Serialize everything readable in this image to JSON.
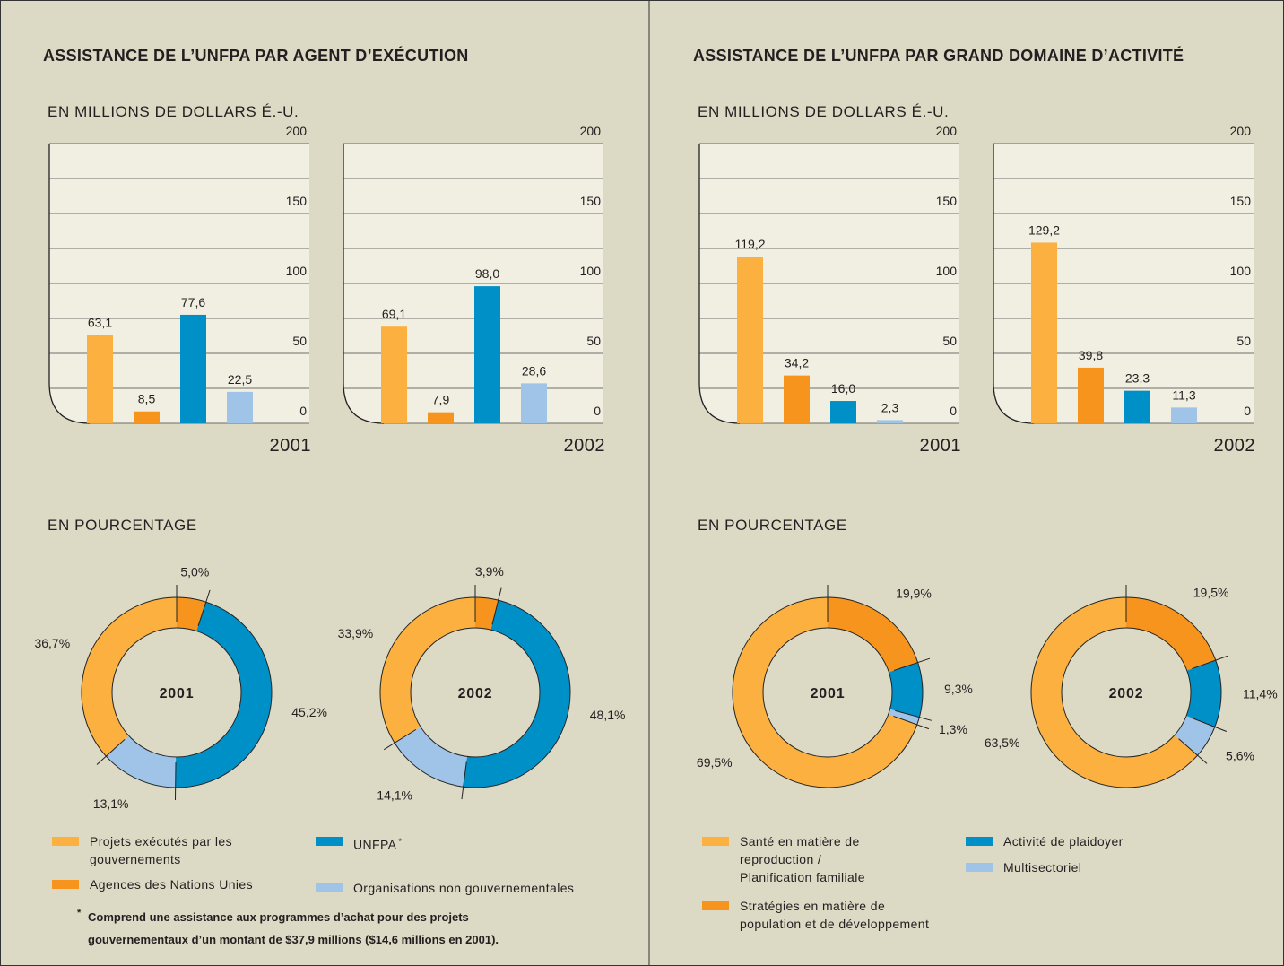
{
  "panels": [
    {
      "title": "ASSISTANCE DE L’UNFPA PAR AGENT D’EXÉCUTION",
      "subtitle_amounts": "EN MILLIONS DE DOLLARS É.-U.",
      "subtitle_percent": "EN POURCENTAGE",
      "legend": [
        {
          "name": "Projets exécutés par les gouvernements",
          "color": "#fbb040"
        },
        {
          "name": "Agences des Nations Unies",
          "color": "#f7941d"
        },
        {
          "name": "UNFPA",
          "color": "#0090c8",
          "note_mark": "*"
        },
        {
          "name": "Organisations non gouvernementales",
          "color": "#9fc4e7"
        }
      ],
      "footnote": {
        "mark": "*",
        "text": "Comprend une assistance aux programmes d’achat pour des projets gouvernementaux d’un montant de $37,9 millions ($14,6 millions en 2001)."
      }
    },
    {
      "title": "ASSISTANCE DE L’UNFPA PAR GRAND DOMAINE D’ACTIVITÉ",
      "subtitle_amounts": "EN MILLIONS DE DOLLARS É.-U.",
      "subtitle_percent": "EN POURCENTAGE",
      "legend": [
        {
          "name": "Santé en matière de reproduction / Planification familiale",
          "color": "#fbb040"
        },
        {
          "name": "Stratégies en matière de population et de développement",
          "color": "#f7941d"
        },
        {
          "name": "Activité de plaidoyer",
          "color": "#0090c8"
        },
        {
          "name": "Multisectoriel",
          "color": "#9fc4e7"
        }
      ]
    }
  ],
  "chart_data": [
    {
      "type": "bar",
      "title": "2001",
      "categories": [
        null,
        null,
        null,
        null
      ],
      "values": [
        63.1,
        8.5,
        77.6,
        22.5
      ],
      "value_labels": [
        "63,1",
        "8,5",
        "77,6",
        "22,5"
      ],
      "colors": [
        "#fbb040",
        "#f7941d",
        "#0090c8",
        "#9fc4e7"
      ],
      "ylim": [
        0,
        200
      ],
      "yticks": [
        0,
        50,
        100,
        150,
        200
      ],
      "minor_yticks": [
        25,
        75,
        125,
        175
      ],
      "grid": true
    },
    {
      "type": "bar",
      "title": "2002",
      "categories": [
        null,
        null,
        null,
        null
      ],
      "values": [
        69.1,
        7.9,
        98.0,
        28.6
      ],
      "value_labels": [
        "69,1",
        "7,9",
        "98,0",
        "28,6"
      ],
      "colors": [
        "#fbb040",
        "#f7941d",
        "#0090c8",
        "#9fc4e7"
      ],
      "ylim": [
        0,
        200
      ],
      "yticks": [
        0,
        50,
        100,
        150,
        200
      ],
      "minor_yticks": [
        25,
        75,
        125,
        175
      ],
      "grid": true
    },
    {
      "type": "donut",
      "center_label": "2001",
      "values": [
        5.0,
        45.2,
        13.1,
        36.7
      ],
      "value_labels": [
        "5,0%",
        "45,2%",
        "13,1%",
        "36,7%"
      ],
      "colors": [
        "#f7941d",
        "#0090c8",
        "#9fc4e7",
        "#fbb040"
      ]
    },
    {
      "type": "donut",
      "center_label": "2002",
      "values": [
        3.9,
        48.1,
        14.1,
        33.9
      ],
      "value_labels": [
        "3,9%",
        "48,1%",
        "14,1%",
        "33,9%"
      ],
      "colors": [
        "#f7941d",
        "#0090c8",
        "#9fc4e7",
        "#fbb040"
      ]
    },
    {
      "type": "bar",
      "title": "2001",
      "categories": [
        null,
        null,
        null,
        null
      ],
      "values": [
        119.2,
        34.2,
        16.0,
        2.3
      ],
      "value_labels": [
        "119,2",
        "34,2",
        "16,0",
        "2,3"
      ],
      "colors": [
        "#fbb040",
        "#f7941d",
        "#0090c8",
        "#9fc4e7"
      ],
      "ylim": [
        0,
        200
      ],
      "yticks": [
        0,
        50,
        100,
        150,
        200
      ],
      "minor_yticks": [
        25,
        75,
        125,
        175
      ],
      "grid": true
    },
    {
      "type": "bar",
      "title": "2002",
      "categories": [
        null,
        null,
        null,
        null
      ],
      "values": [
        129.2,
        39.8,
        23.3,
        11.3
      ],
      "value_labels": [
        "129,2",
        "39,8",
        "23,3",
        "11,3"
      ],
      "colors": [
        "#fbb040",
        "#f7941d",
        "#0090c8",
        "#9fc4e7"
      ],
      "ylim": [
        0,
        200
      ],
      "yticks": [
        0,
        50,
        100,
        150,
        200
      ],
      "minor_yticks": [
        25,
        75,
        125,
        175
      ],
      "grid": true
    },
    {
      "type": "donut",
      "center_label": "2001",
      "values": [
        19.9,
        9.3,
        1.3,
        69.5
      ],
      "value_labels": [
        "19,9%",
        "9,3%",
        "1,3%",
        "69,5%"
      ],
      "colors": [
        "#f7941d",
        "#0090c8",
        "#9fc4e7",
        "#fbb040"
      ]
    },
    {
      "type": "donut",
      "center_label": "2002",
      "values": [
        19.5,
        11.4,
        5.6,
        63.5
      ],
      "value_labels": [
        "19,5%",
        "11,4%",
        "5,6%",
        "63,5%"
      ],
      "colors": [
        "#f7941d",
        "#0090c8",
        "#9fc4e7",
        "#fbb040"
      ]
    }
  ]
}
